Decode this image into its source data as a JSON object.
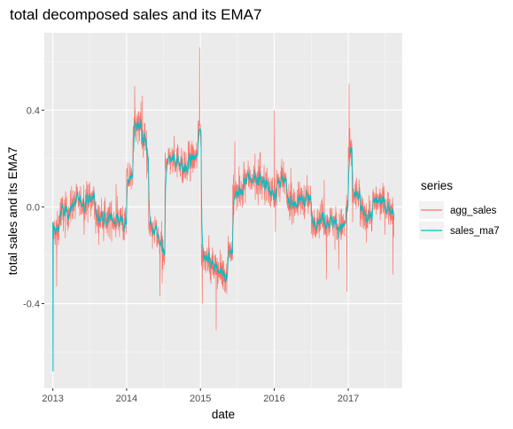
{
  "chart_data": {
    "type": "line",
    "title": "total decomposed sales and its EMA7",
    "xlabel": "date",
    "ylabel": "total sales and its EMA7",
    "x_ticks": [
      "2013",
      "2014",
      "2015",
      "2016",
      "2017"
    ],
    "y_ticks": [
      "-0.4",
      "0.0",
      "0.4"
    ],
    "x_range": [
      "2012-11-20",
      "2017-09-25"
    ],
    "ylim": [
      -0.75,
      0.72
    ],
    "grid": true,
    "legend_position": "right",
    "legend_title": "series",
    "series": [
      {
        "name": "agg_sales",
        "color": "#F8766D"
      },
      {
        "name": "sales_ma7",
        "color": "#00BFC4"
      }
    ],
    "level_points": [
      {
        "x": "2013-01-01",
        "y": -0.1
      },
      {
        "x": "2013-02-01",
        "y": -0.02
      },
      {
        "x": "2013-04-01",
        "y": 0.02
      },
      {
        "x": "2013-06-01",
        "y": 0.03
      },
      {
        "x": "2013-08-01",
        "y": -0.05
      },
      {
        "x": "2013-10-01",
        "y": -0.05
      },
      {
        "x": "2013-12-15",
        "y": -0.08
      },
      {
        "x": "2014-01-01",
        "y": 0.12
      },
      {
        "x": "2014-02-01",
        "y": 0.33
      },
      {
        "x": "2014-03-15",
        "y": 0.28
      },
      {
        "x": "2014-04-10",
        "y": 0.18
      },
      {
        "x": "2014-04-20",
        "y": -0.1
      },
      {
        "x": "2014-06-01",
        "y": -0.15
      },
      {
        "x": "2014-06-25",
        "y": -0.2
      },
      {
        "x": "2014-07-10",
        "y": 0.2
      },
      {
        "x": "2014-09-01",
        "y": 0.19
      },
      {
        "x": "2014-10-01",
        "y": 0.15
      },
      {
        "x": "2014-11-01",
        "y": 0.2
      },
      {
        "x": "2014-12-20",
        "y": 0.32
      },
      {
        "x": "2015-01-05",
        "y": -0.2
      },
      {
        "x": "2015-02-15",
        "y": -0.25
      },
      {
        "x": "2015-04-01",
        "y": -0.28
      },
      {
        "x": "2015-05-15",
        "y": -0.18
      },
      {
        "x": "2015-06-10",
        "y": 0.05
      },
      {
        "x": "2015-08-01",
        "y": 0.12
      },
      {
        "x": "2015-10-01",
        "y": 0.1
      },
      {
        "x": "2015-12-01",
        "y": 0.06
      },
      {
        "x": "2016-01-15",
        "y": 0.1
      },
      {
        "x": "2016-03-01",
        "y": 0.02
      },
      {
        "x": "2016-05-01",
        "y": 0.03
      },
      {
        "x": "2016-07-01",
        "y": -0.05
      },
      {
        "x": "2016-09-01",
        "y": -0.06
      },
      {
        "x": "2016-11-01",
        "y": -0.08
      },
      {
        "x": "2016-12-20",
        "y": 0.0
      },
      {
        "x": "2017-01-01",
        "y": 0.22
      },
      {
        "x": "2017-01-20",
        "y": 0.05
      },
      {
        "x": "2017-03-01",
        "y": -0.03
      },
      {
        "x": "2017-05-01",
        "y": 0.02
      },
      {
        "x": "2017-07-01",
        "y": 0.0
      },
      {
        "x": "2017-08-15",
        "y": -0.1
      }
    ],
    "spikes": [
      {
        "x": "2013-01-03",
        "y": -0.68
      },
      {
        "x": "2013-01-20",
        "y": -0.33
      },
      {
        "x": "2014-02-10",
        "y": 0.5
      },
      {
        "x": "2014-03-20",
        "y": 0.46
      },
      {
        "x": "2014-12-28",
        "y": 0.66
      },
      {
        "x": "2015-01-10",
        "y": -0.4
      },
      {
        "x": "2015-03-20",
        "y": -0.51
      },
      {
        "x": "2015-06-20",
        "y": 0.27
      },
      {
        "x": "2016-01-02",
        "y": 0.4
      },
      {
        "x": "2017-01-05",
        "y": 0.51
      },
      {
        "x": "2016-12-25",
        "y": -0.35
      },
      {
        "x": "2016-09-15",
        "y": -0.3
      },
      {
        "x": "2017-08-10",
        "y": -0.28
      },
      {
        "x": "2014-06-15",
        "y": -0.37
      }
    ]
  }
}
